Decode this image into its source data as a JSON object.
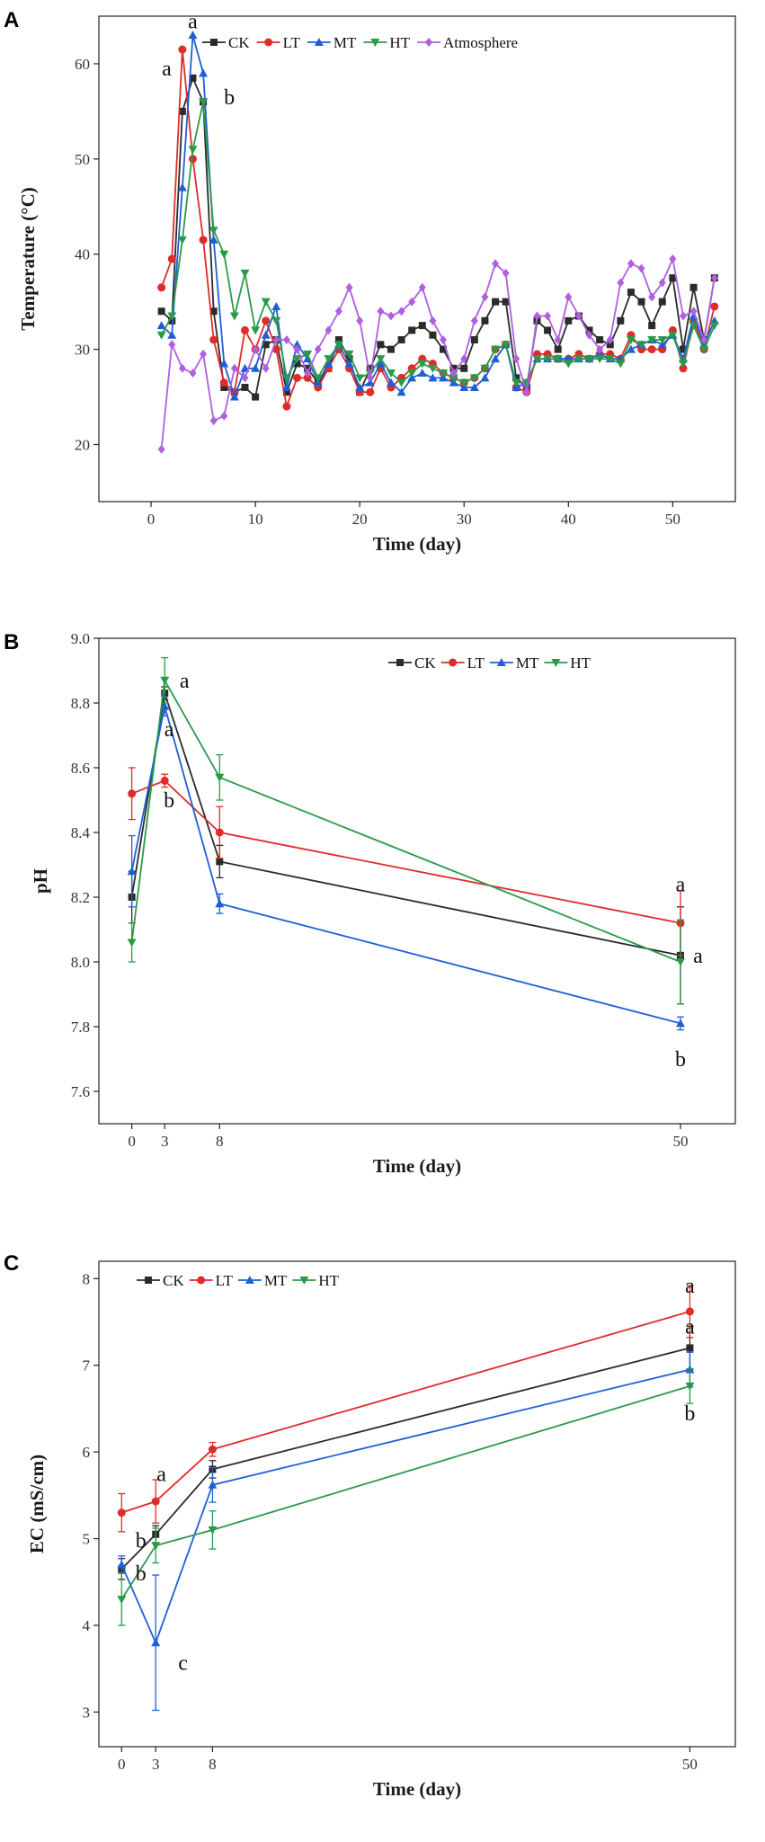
{
  "chart_data": [
    {
      "panel": "A",
      "type": "line",
      "xlabel": "Time (day)",
      "ylabel": "Temperature (°C)",
      "xlim": [
        -5,
        56
      ],
      "ylim": [
        14,
        65
      ],
      "xticks": [
        0,
        10,
        20,
        30,
        40,
        50
      ],
      "yticks": [
        20,
        30,
        40,
        50,
        60
      ],
      "legend": "top",
      "series": [
        {
          "name": "CK",
          "color": "#2b2b2b",
          "marker": "square",
          "x": [
            1,
            2,
            3,
            4,
            5,
            6,
            7,
            8,
            9,
            10,
            11,
            12,
            13,
            14,
            15,
            16,
            17,
            18,
            19,
            20,
            21,
            22,
            23,
            24,
            25,
            26,
            27,
            28,
            29,
            30,
            31,
            32,
            33,
            34,
            35,
            36,
            37,
            38,
            39,
            40,
            41,
            42,
            43,
            44,
            45,
            46,
            47,
            48,
            49,
            50,
            51,
            52,
            53,
            54
          ],
          "y": [
            34,
            33,
            55,
            58.5,
            56,
            34,
            26,
            25.5,
            26,
            25,
            30.5,
            31,
            25.5,
            28.5,
            28,
            26.5,
            28,
            31,
            29,
            25.5,
            28,
            30.5,
            30,
            31,
            32,
            32.5,
            31.5,
            30,
            28,
            28,
            31,
            33,
            35,
            35,
            27,
            26,
            33,
            32,
            30,
            33,
            33.5,
            32,
            31,
            30.5,
            33,
            36,
            35,
            32.5,
            35,
            37.5,
            30,
            36.5,
            31,
            37.5
          ]
        },
        {
          "name": "LT",
          "color": "#e02b2b",
          "marker": "circle",
          "x": [
            1,
            2,
            3,
            4,
            5,
            6,
            7,
            8,
            9,
            10,
            11,
            12,
            13,
            14,
            15,
            16,
            17,
            18,
            19,
            20,
            21,
            22,
            23,
            24,
            25,
            26,
            27,
            28,
            29,
            30,
            31,
            32,
            33,
            34,
            35,
            36,
            37,
            38,
            39,
            40,
            41,
            42,
            43,
            44,
            45,
            46,
            47,
            48,
            49,
            50,
            51,
            52,
            53,
            54
          ],
          "y": [
            36.5,
            39.5,
            61.5,
            50,
            41.5,
            31,
            26.5,
            25.5,
            32,
            30,
            33,
            30,
            24,
            27,
            27,
            26,
            28,
            30,
            28,
            25.5,
            25.5,
            28,
            26,
            27,
            28,
            29,
            28.5,
            27.5,
            27,
            26.5,
            27,
            28,
            30,
            30.5,
            26,
            25.5,
            29.5,
            29.5,
            29,
            29,
            29.5,
            29,
            29.5,
            29.5,
            29,
            31.5,
            30,
            30,
            30,
            32,
            28,
            33,
            30,
            34.5
          ]
        },
        {
          "name": "MT",
          "color": "#1f5fd6",
          "marker": "triangle",
          "x": [
            1,
            2,
            3,
            4,
            5,
            6,
            7,
            8,
            9,
            10,
            11,
            12,
            13,
            14,
            15,
            16,
            17,
            18,
            19,
            20,
            21,
            22,
            23,
            24,
            25,
            26,
            27,
            28,
            29,
            30,
            31,
            32,
            33,
            34,
            35,
            36,
            37,
            38,
            39,
            40,
            41,
            42,
            43,
            44,
            45,
            46,
            47,
            48,
            49,
            50,
            51,
            52,
            53,
            54
          ],
          "y": [
            32.5,
            31.5,
            47,
            63,
            59,
            41.5,
            28.5,
            25,
            28,
            28,
            31.5,
            34.5,
            26,
            30.5,
            29,
            26.5,
            28.5,
            30.5,
            28.5,
            26,
            26.5,
            28.5,
            26.5,
            25.5,
            27,
            27.5,
            27,
            27,
            26.5,
            26,
            26,
            27,
            29,
            30.5,
            26,
            26.5,
            29,
            29,
            29,
            29,
            29,
            29,
            29.5,
            29,
            29,
            30,
            30.5,
            31,
            30.5,
            31.5,
            29,
            33.5,
            30.5,
            33
          ]
        },
        {
          "name": "HT",
          "color": "#2a9a4a",
          "marker": "triangle-down",
          "x": [
            1,
            2,
            3,
            4,
            5,
            6,
            7,
            8,
            9,
            10,
            11,
            12,
            13,
            14,
            15,
            16,
            17,
            18,
            19,
            20,
            21,
            22,
            23,
            24,
            25,
            26,
            27,
            28,
            29,
            30,
            31,
            32,
            33,
            34,
            35,
            36,
            37,
            38,
            39,
            40,
            41,
            42,
            43,
            44,
            45,
            46,
            47,
            48,
            49,
            50,
            51,
            52,
            53,
            54
          ],
          "y": [
            31.5,
            33.5,
            41.5,
            51,
            56,
            42.5,
            40,
            33.5,
            38,
            32,
            35,
            33,
            27,
            29,
            29.5,
            27,
            29,
            30.5,
            29.5,
            27,
            27.5,
            29,
            27.5,
            26.5,
            27.5,
            28.5,
            28,
            27.5,
            27,
            26.5,
            27,
            28,
            30,
            30.5,
            26.5,
            26.5,
            29,
            29,
            29,
            28.5,
            29,
            29,
            29,
            29,
            28.5,
            31,
            30.5,
            31,
            31,
            31.5,
            28.5,
            32.5,
            30,
            32.5
          ]
        },
        {
          "name": "Atmosphere",
          "color": "#b05fe0",
          "marker": "diamond",
          "x": [
            1,
            2,
            3,
            4,
            5,
            6,
            7,
            8,
            9,
            10,
            11,
            12,
            13,
            14,
            15,
            16,
            17,
            18,
            19,
            20,
            21,
            22,
            23,
            24,
            25,
            26,
            27,
            28,
            29,
            30,
            31,
            32,
            33,
            34,
            35,
            36,
            37,
            38,
            39,
            40,
            41,
            42,
            43,
            44,
            45,
            46,
            47,
            48,
            49,
            50,
            51,
            52,
            53,
            54
          ],
          "y": [
            19.5,
            30.5,
            28,
            27.5,
            29.5,
            22.5,
            23,
            28,
            27,
            30,
            28,
            31,
            31,
            30,
            27.5,
            30,
            32,
            34,
            36.5,
            33,
            27,
            34,
            33.5,
            34,
            35,
            36.5,
            33,
            31,
            27.5,
            29,
            33,
            35.5,
            39,
            38,
            29,
            25.5,
            33.5,
            33.5,
            31,
            35.5,
            33.5,
            31.5,
            30,
            31,
            37,
            39,
            38.5,
            35.5,
            37,
            39.5,
            33.5,
            34,
            31,
            37.5
          ]
        }
      ],
      "annotations": [
        {
          "text": "a",
          "x": 4,
          "y": 64.5
        },
        {
          "text": "a",
          "x": 1.5,
          "y": 59.5
        },
        {
          "text": "b",
          "x": 7.5,
          "y": 56.5
        }
      ]
    },
    {
      "panel": "B",
      "type": "line",
      "xlabel": "Time (day)",
      "ylabel": "pH",
      "xlim": [
        -3,
        55
      ],
      "ylim": [
        7.5,
        9.0
      ],
      "xticks": [
        0,
        3,
        8,
        50
      ],
      "yticks": [
        7.6,
        7.8,
        8.0,
        8.2,
        8.4,
        8.6,
        8.8,
        9.0
      ],
      "legend": "top-right",
      "series": [
        {
          "name": "CK",
          "color": "#2b2b2b",
          "marker": "square",
          "x": [
            0,
            3,
            8,
            50
          ],
          "y": [
            8.2,
            8.83,
            8.31,
            8.02
          ],
          "err": [
            0.08,
            0.02,
            0.05,
            0.15
          ]
        },
        {
          "name": "LT",
          "color": "#e02b2b",
          "marker": "circle",
          "x": [
            0,
            3,
            8,
            50
          ],
          "y": [
            8.52,
            8.56,
            8.4,
            8.12
          ],
          "err": [
            0.08,
            0.02,
            0.08,
            0.1
          ]
        },
        {
          "name": "MT",
          "color": "#1f5fd6",
          "marker": "triangle",
          "x": [
            0,
            3,
            8,
            50
          ],
          "y": [
            8.28,
            8.79,
            8.18,
            7.81
          ],
          "err": [
            0.11,
            0.03,
            0.03,
            0.02
          ]
        },
        {
          "name": "HT",
          "color": "#2a9a4a",
          "marker": "triangle-down",
          "x": [
            0,
            3,
            8,
            50
          ],
          "y": [
            8.06,
            8.87,
            8.57,
            8.0
          ],
          "err": [
            0.06,
            0.07,
            0.07,
            0.13
          ]
        }
      ],
      "annotations": [
        {
          "text": "a",
          "x": 4.8,
          "y": 8.87
        },
        {
          "text": "a",
          "x": 3.4,
          "y": 8.72
        },
        {
          "text": "b",
          "x": 3.4,
          "y": 8.5
        },
        {
          "text": "a",
          "x": 50,
          "y": 8.24
        },
        {
          "text": "a",
          "x": 51.6,
          "y": 8.02
        },
        {
          "text": "b",
          "x": 50,
          "y": 7.7
        }
      ]
    },
    {
      "panel": "C",
      "type": "line",
      "xlabel": "Time (day)",
      "ylabel": "EC (mS/cm)",
      "xlim": [
        -2,
        54
      ],
      "ylim": [
        2.6,
        8.2
      ],
      "xticks": [
        0,
        3,
        8,
        50
      ],
      "yticks": [
        3,
        4,
        5,
        6,
        7,
        8
      ],
      "legend": "top-left",
      "series": [
        {
          "name": "CK",
          "color": "#2b2b2b",
          "marker": "square",
          "x": [
            0,
            3,
            8,
            50
          ],
          "y": [
            4.65,
            5.05,
            5.8,
            7.2
          ],
          "err": [
            0.12,
            0.1,
            0.1,
            0.25
          ]
        },
        {
          "name": "LT",
          "color": "#e02b2b",
          "marker": "circle",
          "x": [
            0,
            3,
            8,
            50
          ],
          "y": [
            5.3,
            5.43,
            6.03,
            7.62
          ],
          "err": [
            0.22,
            0.25,
            0.08,
            0.3
          ]
        },
        {
          "name": "MT",
          "color": "#1f5fd6",
          "marker": "triangle",
          "x": [
            0,
            3,
            8,
            50
          ],
          "y": [
            4.7,
            3.8,
            5.62,
            6.95
          ],
          "err": [
            0.1,
            0.78,
            0.2,
            0.2
          ]
        },
        {
          "name": "HT",
          "color": "#2a9a4a",
          "marker": "triangle-down",
          "x": [
            0,
            3,
            8,
            50
          ],
          "y": [
            4.3,
            4.92,
            5.1,
            6.76
          ],
          "err": [
            0.3,
            0.2,
            0.22,
            0.2
          ]
        }
      ],
      "annotations": [
        {
          "text": "a",
          "x": 50,
          "y": 7.92
        },
        {
          "text": "a",
          "x": 50,
          "y": 7.45
        },
        {
          "text": "b",
          "x": 50,
          "y": 6.45
        },
        {
          "text": "a",
          "x": 3.5,
          "y": 5.75
        },
        {
          "text": "b",
          "x": 1.7,
          "y": 4.98
        },
        {
          "text": "b",
          "x": 1.7,
          "y": 4.6
        },
        {
          "text": "c",
          "x": 5.4,
          "y": 3.57
        }
      ]
    }
  ]
}
